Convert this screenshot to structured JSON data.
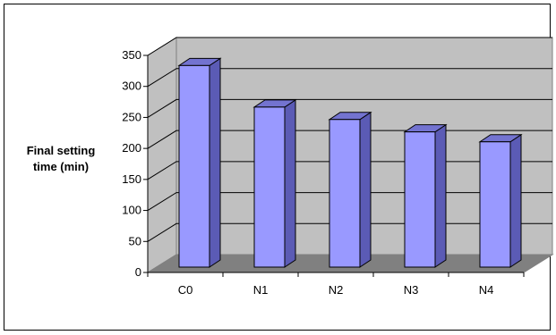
{
  "chart_data": {
    "type": "bar",
    "ylabel": "Final setting\ntime (min)",
    "xlabel": "",
    "title": "",
    "categories": [
      "C0",
      "N1",
      "N2",
      "N3",
      "N4"
    ],
    "values": [
      325,
      258,
      238,
      218,
      202
    ],
    "ylim": [
      0,
      350
    ],
    "yticks": [
      0,
      50,
      100,
      150,
      200,
      250,
      300,
      350
    ],
    "grid": true,
    "legend": "none",
    "bar_style": "3d",
    "colors": {
      "bar_front": "#9999FF",
      "bar_side": "#5B5BB5",
      "bar_top": "#7373D0",
      "wall": "#C0C0C0",
      "floor": "#808080",
      "gridline": "#000000"
    }
  }
}
